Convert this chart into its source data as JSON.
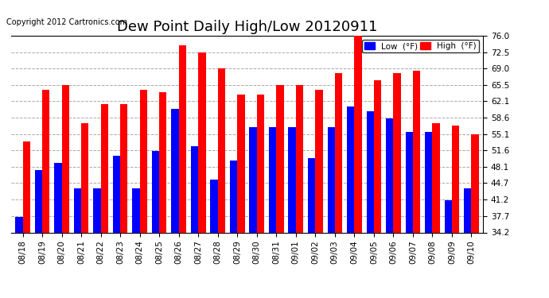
{
  "title": "Dew Point Daily High/Low 20120911",
  "copyright": "Copyright 2012 Cartronics.com",
  "legend_low": "Low  (°F)",
  "legend_high": "High  (°F)",
  "dates": [
    "08/18",
    "08/19",
    "08/20",
    "08/21",
    "08/22",
    "08/23",
    "08/24",
    "08/25",
    "08/26",
    "08/27",
    "08/28",
    "08/29",
    "08/30",
    "08/31",
    "09/01",
    "09/02",
    "09/03",
    "09/04",
    "09/05",
    "09/06",
    "09/07",
    "09/08",
    "09/09",
    "09/10"
  ],
  "high": [
    53.5,
    64.5,
    65.5,
    57.5,
    61.5,
    61.5,
    64.5,
    64.0,
    74.0,
    72.5,
    69.0,
    63.5,
    63.5,
    65.5,
    65.5,
    64.5,
    68.0,
    76.0,
    66.5,
    68.0,
    68.5,
    57.5,
    57.0,
    55.0
  ],
  "low": [
    37.5,
    47.5,
    49.0,
    43.5,
    43.5,
    50.5,
    43.5,
    51.5,
    60.5,
    52.5,
    45.5,
    49.5,
    56.5,
    56.5,
    56.5,
    50.0,
    56.5,
    61.0,
    60.0,
    58.5,
    55.5,
    55.5,
    41.0,
    43.5
  ],
  "ylim": [
    34.2,
    76.0
  ],
  "yticks": [
    34.2,
    37.7,
    41.2,
    44.7,
    48.1,
    51.6,
    55.1,
    58.6,
    62.1,
    65.5,
    69.0,
    72.5,
    76.0
  ],
  "bar_width": 0.38,
  "high_color": "#ff0000",
  "low_color": "#0000ff",
  "bg_color": "#ffffff",
  "grid_color": "#aaaaaa",
  "title_fontsize": 13,
  "tick_fontsize": 7.5,
  "copyright_fontsize": 7
}
